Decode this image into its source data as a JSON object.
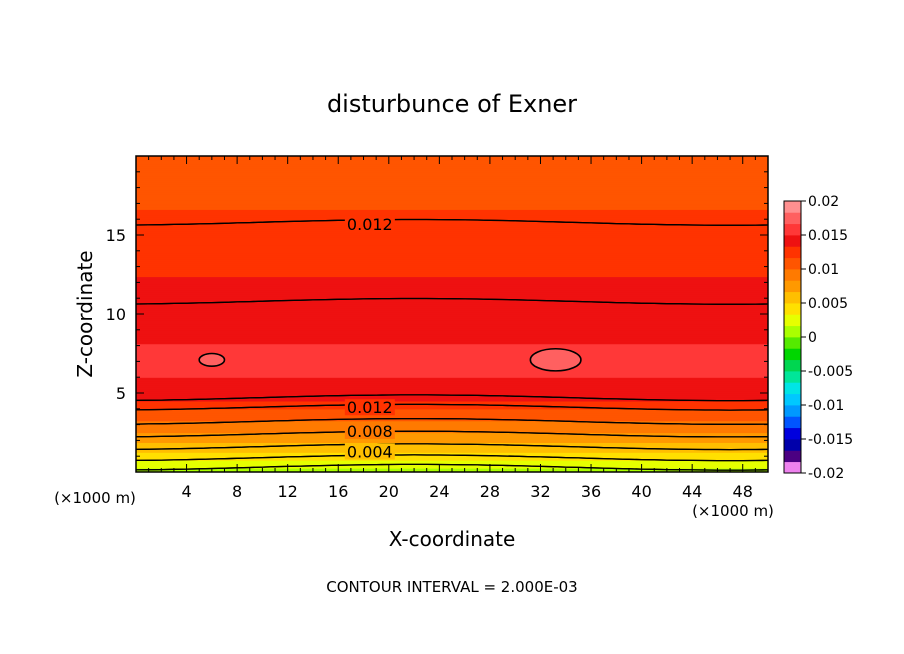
{
  "chart_data": {
    "type": "heatmap",
    "title": "disturbunce of Exner",
    "xlabel": "X-coordinate",
    "ylabel": "Z-coordinate",
    "x_unit": "(×1000 m)",
    "z_unit": "(×1000 m)",
    "footer": "CONTOUR INTERVAL = 2.000E-03",
    "xlim": [
      0,
      50
    ],
    "ylim": [
      0,
      20
    ],
    "x_ticks": [
      4,
      8,
      12,
      16,
      20,
      24,
      28,
      32,
      36,
      40,
      44,
      48
    ],
    "y_ticks": [
      5,
      10,
      15
    ],
    "contour_labels": [
      {
        "text": "0.012",
        "x": 18.5,
        "z": 15.7
      },
      {
        "text": "0.012",
        "x": 18.5,
        "z": 4.1
      },
      {
        "text": "0.008",
        "x": 18.5,
        "z": 2.6
      },
      {
        "text": "0.004",
        "x": 18.5,
        "z": 1.3
      }
    ],
    "field_profile": [
      {
        "z": 0.0,
        "value": 0.0
      },
      {
        "z": 0.3,
        "value": 0.002
      },
      {
        "z": 0.9,
        "value": 0.004
      },
      {
        "z": 1.6,
        "value": 0.006
      },
      {
        "z": 2.4,
        "value": 0.008
      },
      {
        "z": 3.2,
        "value": 0.01
      },
      {
        "z": 4.1,
        "value": 0.012
      },
      {
        "z": 4.7,
        "value": 0.014
      },
      {
        "z": 6.7,
        "value": 0.0155
      },
      {
        "z": 10.8,
        "value": 0.014
      },
      {
        "z": 13.2,
        "value": 0.013
      },
      {
        "z": 15.8,
        "value": 0.012
      },
      {
        "z": 18.2,
        "value": 0.011
      },
      {
        "z": 20.0,
        "value": 0.0105
      }
    ],
    "closed_contours": [
      {
        "value": 0.016,
        "x_center": 6.0,
        "z_center": 7.1,
        "half_width": 1.0,
        "half_height": 0.4
      },
      {
        "value": 0.016,
        "x_center": 33.2,
        "z_center": 7.1,
        "half_width": 2.0,
        "half_height": 0.7
      }
    ],
    "colorbar": {
      "min": -0.02,
      "max": 0.02,
      "tick_labels": [
        "0.02",
        "0.015",
        "0.01",
        "0.005",
        "0",
        "-0.005",
        "-0.01",
        "-0.015",
        "-0.02"
      ],
      "colors": [
        "#ee82ee",
        "#4b0082",
        "#0000aa",
        "#0000dd",
        "#0055ff",
        "#0099ff",
        "#00c8ff",
        "#00e5e5",
        "#00e699",
        "#00d650",
        "#00d600",
        "#55ea00",
        "#aaff00",
        "#e6ff00",
        "#ffe000",
        "#ffbf00",
        "#ff9900",
        "#ff7a00",
        "#ff5500",
        "#ff3300",
        "#ee1111",
        "#ff3838",
        "#ff6060",
        "#ff9090"
      ]
    }
  }
}
